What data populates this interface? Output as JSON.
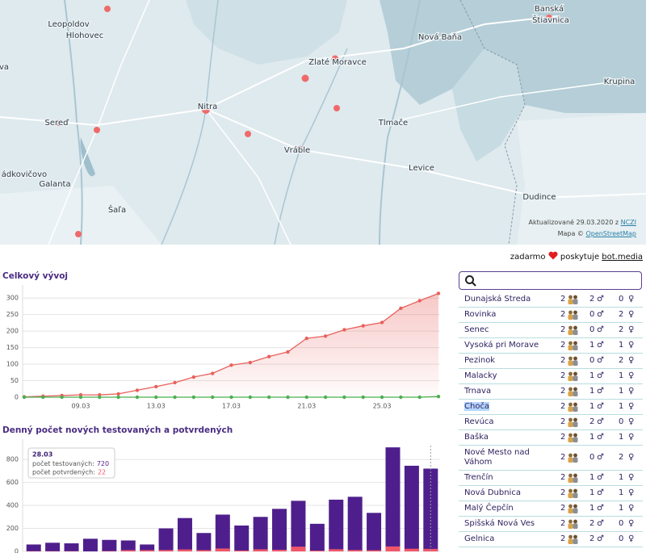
{
  "map": {
    "places": [
      "Leopoldov",
      "Hlohovec",
      "Banská",
      "Štiavnica",
      "Nová Baňa",
      "Zlaté Moravce",
      "Krupina",
      "Nitra",
      "Sereď",
      "Tlmače",
      "Vráble",
      "ádkovičovo",
      "Levice",
      "Galanta",
      "Šaľa",
      "Dudince",
      "va"
    ],
    "updated": "Aktualizované 29.03.2020 z",
    "source": "NCZI",
    "map_credit": "Mapa ©",
    "map_source": "OpenStreetMap"
  },
  "credit": {
    "free": "zadarmo",
    "provided": "poskytuje",
    "provider": "bot.media"
  },
  "chart_data": [
    {
      "type": "line",
      "title": "Celkový vývoj",
      "categories": [
        null,
        null,
        null,
        "09.03",
        null,
        null,
        null,
        "13.03",
        null,
        null,
        null,
        "17.03",
        null,
        null,
        null,
        "21.03",
        null,
        null,
        null,
        "25.03",
        null,
        null,
        null
      ],
      "series": [
        {
          "color": "#e8615d",
          "values": [
            1,
            3,
            5,
            7,
            7,
            10,
            21,
            32,
            44,
            61,
            72,
            97,
            105,
            123,
            137,
            178,
            185,
            204,
            216,
            226,
            269,
            292,
            314
          ]
        },
        {
          "color": "#4caf50",
          "values": [
            0,
            0,
            0,
            0,
            0,
            0,
            0,
            0,
            0,
            0,
            0,
            0,
            0,
            0,
            0,
            0,
            0,
            0,
            0,
            0,
            0,
            0,
            2
          ]
        }
      ],
      "ylim": [
        0,
        320
      ],
      "yticks": [
        0,
        50,
        100,
        150,
        200,
        250,
        300
      ],
      "grid": true
    },
    {
      "type": "bar",
      "title": "Denný počet nových testovaných a potvrdených",
      "categories": [
        null,
        null,
        null,
        null,
        null,
        null,
        null,
        null,
        null,
        null,
        null,
        null,
        null,
        null,
        null,
        null,
        null,
        null,
        null,
        null,
        null,
        null
      ],
      "series": [
        {
          "name": "počet testovaných:",
          "color": "#4e1f8c",
          "values": [
            60,
            75,
            70,
            110,
            100,
            95,
            60,
            200,
            290,
            160,
            320,
            225,
            300,
            370,
            440,
            240,
            450,
            475,
            335,
            905,
            745,
            720
          ]
        },
        {
          "name": "počet potvrdených:",
          "color": "#f0566a",
          "values": [
            2,
            2,
            2,
            0,
            3,
            11,
            11,
            12,
            17,
            11,
            25,
            8,
            18,
            14,
            41,
            7,
            19,
            12,
            10,
            43,
            23,
            22
          ]
        }
      ],
      "ylim": [
        0,
        920
      ],
      "yticks": [
        0,
        200,
        400,
        600,
        800
      ],
      "grid": true,
      "tooltip": {
        "title": "28.03"
      }
    }
  ],
  "list": {
    "male_symbol": "♂",
    "female_symbol": "♀",
    "selected": 7,
    "rows": [
      {
        "name": "Dunajská Streda",
        "count": 2,
        "male": 2,
        "female": 0
      },
      {
        "name": "Rovinka",
        "count": 2,
        "male": 0,
        "female": 2
      },
      {
        "name": "Senec",
        "count": 2,
        "male": 0,
        "female": 2
      },
      {
        "name": "Vysoká pri Morave",
        "count": 2,
        "male": 1,
        "female": 1
      },
      {
        "name": "Pezinok",
        "count": 2,
        "male": 0,
        "female": 2
      },
      {
        "name": "Malacky",
        "count": 2,
        "male": 1,
        "female": 1
      },
      {
        "name": "Trnava",
        "count": 2,
        "male": 1,
        "female": 1
      },
      {
        "name": "Choča",
        "count": 2,
        "male": 1,
        "female": 1
      },
      {
        "name": "Revúca",
        "count": 2,
        "male": 2,
        "female": 0
      },
      {
        "name": "Baška",
        "count": 2,
        "male": 1,
        "female": 1
      },
      {
        "name": "Nové Mesto nad Váhom",
        "count": 2,
        "male": 0,
        "female": 2
      },
      {
        "name": "Trenčín",
        "count": 2,
        "male": 1,
        "female": 1
      },
      {
        "name": "Nová Dubnica",
        "count": 2,
        "male": 1,
        "female": 1
      },
      {
        "name": "Malý Čepčín",
        "count": 2,
        "male": 1,
        "female": 1
      },
      {
        "name": "Spišská Nová Ves",
        "count": 2,
        "male": 2,
        "female": 0
      },
      {
        "name": "Gelnica",
        "count": 2,
        "male": 2,
        "female": 0
      }
    ]
  }
}
